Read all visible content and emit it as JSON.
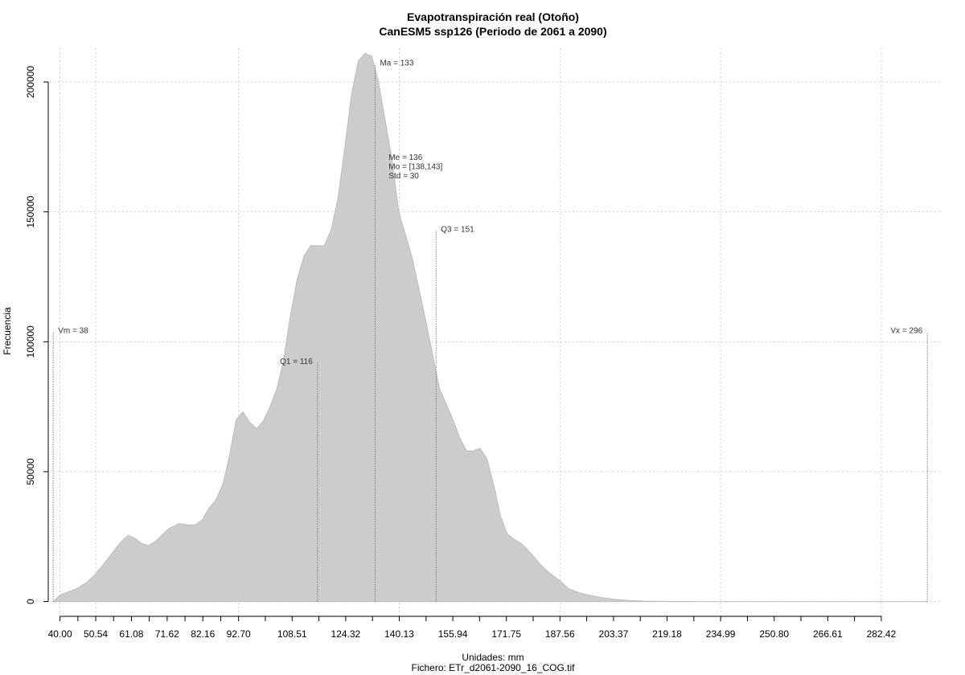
{
  "chart_data": {
    "type": "area",
    "title": "Evapotranspiración real (Otoño)",
    "subtitle": "CanESM5 ssp126 (Periodo de 2061 a 2090)",
    "xlabel": "Unidades: mm",
    "ylabel": "Frecuencia",
    "caption": "Fichero: ETr_d2061-2090_16_COG.tif",
    "xlim": [
      37,
      300
    ],
    "ylim": [
      -6000,
      213000
    ],
    "grid": true,
    "fill_color": "#cccccc",
    "x_ticks": [
      40.0,
      50.54,
      61.08,
      71.62,
      82.16,
      92.7,
      108.51,
      124.32,
      140.13,
      155.94,
      171.75,
      187.56,
      203.37,
      219.18,
      234.99,
      250.8,
      266.61,
      282.42
    ],
    "x_tick_labels": [
      "40.00",
      "50.54",
      "61.08",
      "71.62",
      "82.16",
      "92.70",
      "108.51",
      "124.32",
      "140.13",
      "155.94",
      "171.75",
      "187.56",
      "203.37",
      "219.18",
      "234.99",
      "250.80",
      "266.61",
      "282.42"
    ],
    "y_ticks": [
      0,
      50000,
      100000,
      150000,
      200000
    ],
    "y_tick_labels": [
      "0",
      "50000",
      "100000",
      "150000",
      "200000"
    ],
    "x_grid": [
      40.0,
      50.54,
      92.7,
      140.13,
      187.56,
      234.99,
      282.42
    ],
    "x": [
      38,
      40,
      42,
      45,
      48,
      50,
      52,
      55,
      58,
      60,
      62,
      64,
      66,
      68,
      70,
      72,
      75,
      78,
      80,
      82,
      84,
      86,
      88,
      90,
      92,
      94,
      96,
      98,
      100,
      102,
      104,
      106,
      108,
      110,
      112,
      114,
      116,
      118,
      120,
      122,
      124,
      126,
      128,
      130,
      132,
      134,
      136,
      138,
      139,
      140,
      142,
      144,
      146,
      148,
      150,
      152,
      154,
      156,
      158,
      160,
      162,
      164,
      166,
      168,
      170,
      172,
      174,
      176,
      178,
      180,
      182,
      184,
      186,
      188,
      190,
      193,
      196,
      200,
      204,
      208,
      212,
      216,
      220,
      225,
      235,
      250,
      270,
      290,
      296
    ],
    "y": [
      0,
      2500,
      3500,
      5000,
      7500,
      10000,
      13000,
      18000,
      23000,
      25500,
      24500,
      22500,
      21500,
      23000,
      25500,
      28000,
      30000,
      29500,
      29500,
      31500,
      36000,
      39000,
      45000,
      56000,
      70000,
      73000,
      69000,
      66500,
      69500,
      75000,
      82000,
      93000,
      110000,
      124000,
      133000,
      137000,
      137000,
      137000,
      143000,
      155000,
      174000,
      195000,
      208000,
      211000,
      210000,
      200000,
      185000,
      170000,
      160000,
      150000,
      141000,
      132000,
      120000,
      108000,
      95000,
      82000,
      76000,
      70000,
      63000,
      58000,
      58000,
      59000,
      55000,
      45000,
      33000,
      26000,
      24000,
      22500,
      20000,
      17000,
      14000,
      11500,
      9500,
      7500,
      5000,
      3500,
      2500,
      1500,
      800,
      400,
      200,
      100,
      50,
      20,
      10,
      5,
      2,
      1,
      0
    ],
    "annotations": [
      {
        "label": "Vm = 38",
        "x": 38,
        "y_line_top": 104000,
        "anchor": "start"
      },
      {
        "label": "Q1 = 116",
        "x": 116,
        "y_line_top": 92000,
        "anchor": "end"
      },
      {
        "label": "Ma = 133",
        "x": 133,
        "y_line_top": 207000,
        "anchor": "start"
      },
      {
        "label": "Q3 = 151",
        "x": 151,
        "y_line_top": 143000,
        "anchor": "start"
      },
      {
        "label": "Vx = 296",
        "x": 296,
        "y_line_top": 104000,
        "anchor": "end"
      }
    ],
    "stats_box": {
      "x": 137,
      "y": 170000,
      "lines": [
        "Me = 136",
        "Mo = [138,143]",
        "Std = 30"
      ]
    }
  }
}
